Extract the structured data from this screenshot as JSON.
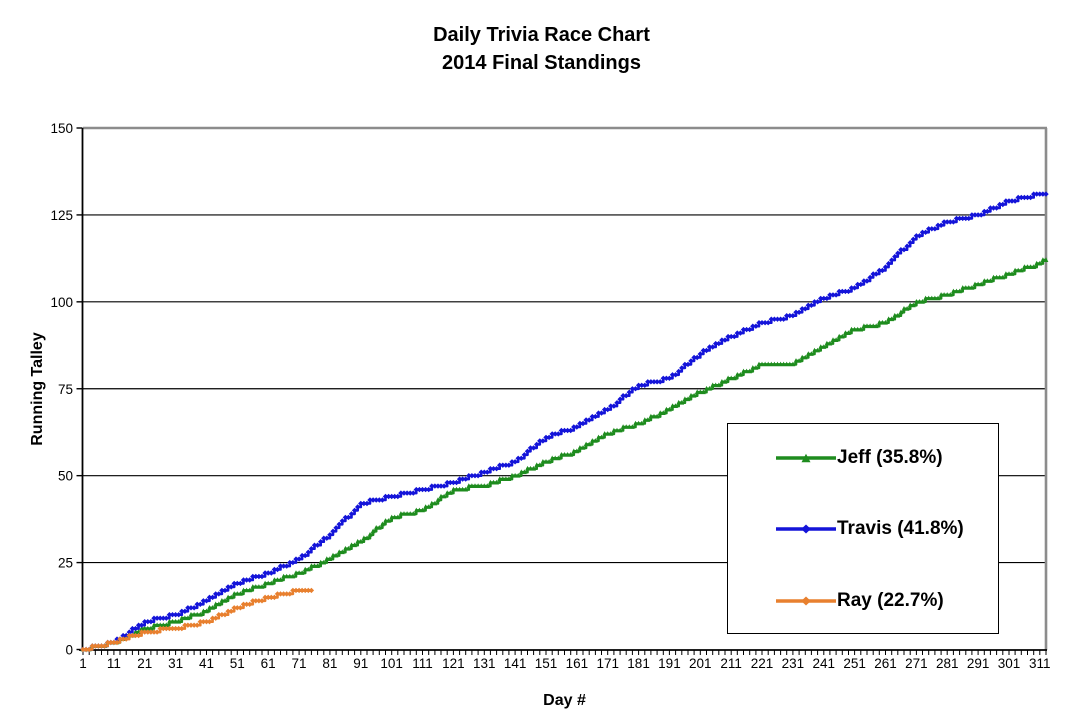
{
  "title": {
    "line1": "Daily Trivia Race Chart",
    "line2": "2014 Final Standings"
  },
  "axes": {
    "y_label": "Running Talley",
    "x_label": "Day #",
    "y_ticks": [
      0,
      25,
      50,
      75,
      100,
      125,
      150
    ],
    "x_tick_labels": [
      1,
      11,
      21,
      31,
      41,
      51,
      61,
      71,
      81,
      91,
      101,
      111,
      121,
      131,
      141,
      151,
      161,
      171,
      181,
      191,
      201,
      211,
      221,
      231,
      241,
      251,
      261,
      271,
      281,
      291,
      301,
      311
    ],
    "x_minor_tick_step": 2
  },
  "colors": {
    "axis": "#000000",
    "gridline": "#000000",
    "plot_border_gray": "#8c8c8c",
    "legend_border": "#000000",
    "background": "#ffffff"
  },
  "chart_data": {
    "type": "line",
    "title": "Daily Trivia Race Chart 2014 Final Standings",
    "xlabel": "Day #",
    "ylabel": "Running Talley",
    "xlim": [
      1,
      313
    ],
    "ylim": [
      0,
      150
    ],
    "grid": "horizontal gridlines at 25,50,75,100,125,150",
    "legend_position": "inside lower-right box",
    "x_is": "day number (daily running tally, stepped)",
    "series": [
      {
        "name": "Jeff (35.8%)",
        "color": "#1e8c1e",
        "marker": "triangle",
        "percent": 35.8,
        "final_day": 313,
        "final_value": 112,
        "sample_days": [
          1,
          11,
          21,
          31,
          41,
          51,
          61,
          71,
          81,
          91,
          101,
          111,
          121,
          131,
          141,
          151,
          161,
          171,
          181,
          191,
          201,
          211,
          221,
          231,
          241,
          251,
          261,
          271,
          281,
          291,
          301,
          311,
          313
        ],
        "sample_values": [
          0,
          2,
          6,
          8,
          11,
          16,
          19,
          22,
          26,
          31,
          38,
          40,
          46,
          47,
          50,
          54,
          57,
          62,
          65,
          69,
          74,
          78,
          82,
          82,
          87,
          92,
          94,
          100,
          102,
          105,
          108,
          111,
          112
        ]
      },
      {
        "name": "Travis (41.8%)",
        "color": "#1414d9",
        "marker": "diamond",
        "percent": 41.8,
        "final_day": 313,
        "final_value": 131,
        "sample_days": [
          1,
          11,
          21,
          31,
          41,
          51,
          61,
          71,
          81,
          91,
          101,
          111,
          121,
          131,
          141,
          151,
          161,
          171,
          181,
          191,
          201,
          211,
          221,
          231,
          241,
          251,
          261,
          271,
          281,
          291,
          301,
          311,
          313
        ],
        "sample_values": [
          0,
          2,
          8,
          10,
          14,
          19,
          22,
          26,
          33,
          42,
          44,
          46,
          48,
          51,
          54,
          61,
          64,
          69,
          76,
          78,
          85,
          90,
          94,
          96,
          101,
          104,
          110,
          119,
          123,
          125,
          129,
          131,
          131
        ]
      },
      {
        "name": "Ray (22.7%)",
        "color": "#e8802f",
        "marker": "diamond",
        "percent": 22.7,
        "final_day": 75,
        "final_value": 17,
        "sample_days": [
          1,
          11,
          21,
          31,
          41,
          51,
          61,
          71,
          75
        ],
        "sample_values": [
          0,
          2,
          5,
          6,
          8,
          12,
          15,
          17,
          17
        ]
      }
    ]
  }
}
